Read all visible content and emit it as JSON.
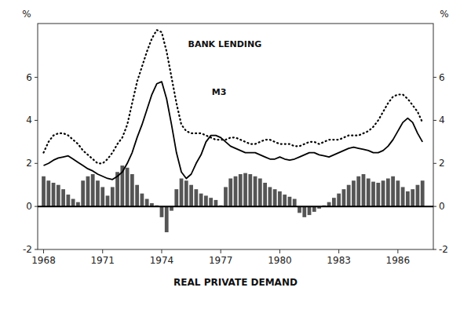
{
  "chart_data": {
    "type": "bar",
    "x": [
      1968,
      1968.25,
      1968.5,
      1968.75,
      1969,
      1969.25,
      1969.5,
      1969.75,
      1970,
      1970.25,
      1970.5,
      1970.75,
      1971,
      1971.25,
      1971.5,
      1971.75,
      1972,
      1972.25,
      1972.5,
      1972.75,
      1973,
      1973.25,
      1973.5,
      1973.75,
      1974,
      1974.25,
      1974.5,
      1974.75,
      1975,
      1975.25,
      1975.5,
      1975.75,
      1976,
      1976.25,
      1976.5,
      1976.75,
      1977,
      1977.25,
      1977.5,
      1977.75,
      1978,
      1978.25,
      1978.5,
      1978.75,
      1979,
      1979.25,
      1979.5,
      1979.75,
      1980,
      1980.25,
      1980.5,
      1980.75,
      1981,
      1981.25,
      1981.5,
      1981.75,
      1982,
      1982.25,
      1982.5,
      1982.75,
      1983,
      1983.25,
      1983.5,
      1983.75,
      1984,
      1984.25,
      1984.5,
      1984.75,
      1985,
      1985.25,
      1985.5,
      1985.75,
      1986,
      1986.25,
      1986.5,
      1986.75,
      1987,
      1987.25
    ],
    "series": [
      {
        "name": "REAL PRIVATE DEMAND",
        "type": "bar",
        "color": "#555555",
        "values": [
          1.4,
          1.2,
          1.1,
          1.0,
          0.8,
          0.55,
          0.35,
          0.2,
          1.2,
          1.4,
          1.5,
          1.2,
          0.9,
          0.5,
          0.9,
          1.6,
          1.9,
          1.8,
          1.5,
          1.0,
          0.6,
          0.35,
          0.15,
          0.05,
          -0.5,
          -1.2,
          -0.2,
          0.8,
          1.3,
          1.2,
          1.0,
          0.8,
          0.6,
          0.5,
          0.4,
          0.3,
          0.05,
          0.9,
          1.3,
          1.4,
          1.5,
          1.55,
          1.5,
          1.4,
          1.3,
          1.1,
          0.9,
          0.8,
          0.7,
          0.55,
          0.45,
          0.35,
          -0.3,
          -0.5,
          -0.4,
          -0.25,
          -0.1,
          0.05,
          0.2,
          0.4,
          0.6,
          0.8,
          1.0,
          1.2,
          1.4,
          1.5,
          1.3,
          1.15,
          1.1,
          1.2,
          1.3,
          1.4,
          1.2,
          0.9,
          0.7,
          0.8,
          1.0,
          1.2
        ]
      },
      {
        "name": "BANK LENDING",
        "type": "line",
        "color": "#000000",
        "line_style": "dotted",
        "values": [
          2.5,
          3.0,
          3.3,
          3.4,
          3.4,
          3.3,
          3.1,
          2.9,
          2.6,
          2.4,
          2.2,
          2.0,
          2.0,
          2.2,
          2.5,
          2.9,
          3.2,
          3.8,
          4.8,
          5.8,
          6.5,
          7.2,
          7.8,
          8.2,
          8.1,
          7.2,
          6.0,
          4.8,
          3.8,
          3.5,
          3.4,
          3.4,
          3.4,
          3.3,
          3.2,
          3.1,
          3.1,
          3.1,
          3.2,
          3.2,
          3.1,
          3.0,
          2.9,
          2.9,
          3.0,
          3.1,
          3.1,
          3.0,
          2.9,
          2.9,
          2.9,
          2.8,
          2.8,
          2.9,
          3.0,
          3.0,
          2.9,
          3.0,
          3.1,
          3.1,
          3.1,
          3.2,
          3.3,
          3.3,
          3.3,
          3.4,
          3.5,
          3.7,
          4.0,
          4.4,
          4.8,
          5.1,
          5.2,
          5.2,
          5.0,
          4.7,
          4.4,
          3.9
        ]
      },
      {
        "name": "M3",
        "type": "line",
        "color": "#000000",
        "line_style": "solid",
        "values": [
          1.9,
          2.0,
          2.15,
          2.25,
          2.3,
          2.35,
          2.2,
          2.05,
          1.9,
          1.75,
          1.65,
          1.5,
          1.4,
          1.3,
          1.25,
          1.4,
          1.6,
          2.0,
          2.5,
          3.2,
          3.8,
          4.5,
          5.2,
          5.7,
          5.8,
          5.0,
          3.8,
          2.5,
          1.6,
          1.3,
          1.5,
          2.0,
          2.4,
          3.0,
          3.3,
          3.3,
          3.2,
          3.0,
          2.8,
          2.7,
          2.6,
          2.5,
          2.5,
          2.5,
          2.4,
          2.3,
          2.2,
          2.2,
          2.3,
          2.2,
          2.15,
          2.2,
          2.3,
          2.4,
          2.5,
          2.5,
          2.4,
          2.35,
          2.3,
          2.4,
          2.5,
          2.6,
          2.7,
          2.75,
          2.7,
          2.65,
          2.6,
          2.5,
          2.5,
          2.6,
          2.8,
          3.1,
          3.5,
          3.9,
          4.1,
          3.9,
          3.4,
          3.0
        ]
      }
    ],
    "y_label": "%",
    "y2_label": "%",
    "xlim": [
      1967.7,
      1987.8
    ],
    "xticks": [
      1968,
      1971,
      1974,
      1977,
      1980,
      1983,
      1986
    ],
    "ylim": [
      -2,
      8.5
    ],
    "yticks": [
      -2,
      0,
      2,
      4,
      6
    ],
    "y2lim": [
      -2,
      8.5
    ],
    "y2ticks": [
      -2,
      0,
      2,
      4,
      6
    ],
    "grid": false
  }
}
